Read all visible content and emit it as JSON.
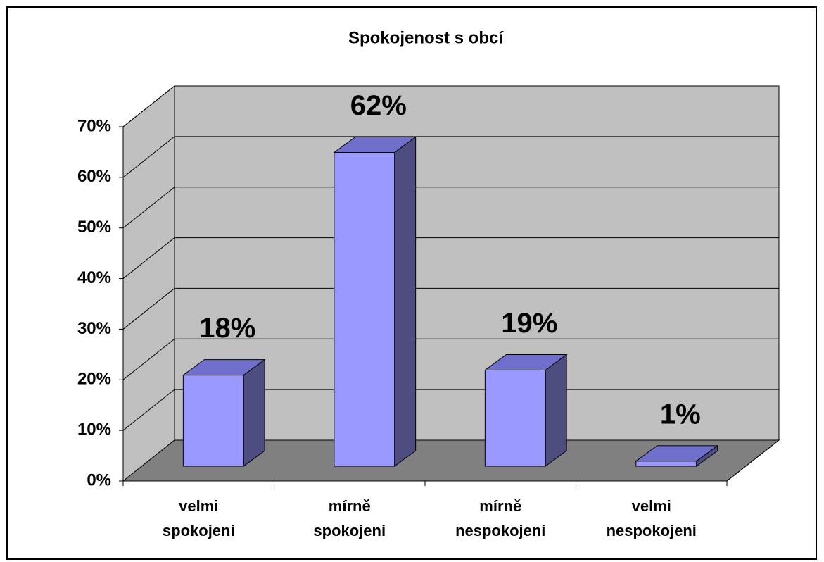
{
  "chart_data": {
    "type": "bar3d",
    "title": "Spokojenost s obcí",
    "categories": [
      "velmi spokojeni",
      "mírně spokojeni",
      "mírně nespokojeni",
      "velmi nespokojeni"
    ],
    "values": [
      18,
      62,
      19,
      1
    ],
    "value_labels": [
      "18%",
      "62%",
      "19%",
      "1%"
    ],
    "color": "#9999ff",
    "ylim": [
      0,
      70
    ],
    "yticks": [
      {
        "value": 0,
        "label": "0%"
      },
      {
        "value": 10,
        "label": "10%"
      },
      {
        "value": 20,
        "label": "20%"
      },
      {
        "value": 30,
        "label": "30%"
      },
      {
        "value": 40,
        "label": "40%"
      },
      {
        "value": 50,
        "label": "50%"
      },
      {
        "value": 60,
        "label": "60%"
      },
      {
        "value": 70,
        "label": "70%"
      }
    ],
    "grid": true
  }
}
